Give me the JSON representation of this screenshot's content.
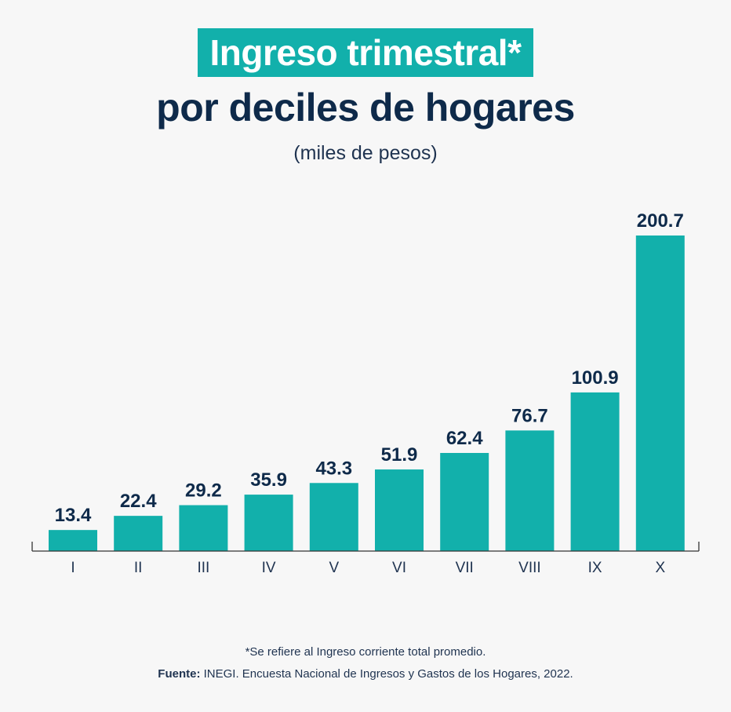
{
  "header": {
    "title": "Ingreso trimestral*",
    "subtitle": "por deciles de hogares",
    "units": "(miles de pesos)"
  },
  "colors": {
    "bar": "#12b0ab",
    "text": "#0e2a4a",
    "axis": "#333333"
  },
  "chart_data": {
    "type": "bar",
    "title": "Ingreso trimestral* por deciles de hogares",
    "ylabel": "(miles de pesos)",
    "categories": [
      "I",
      "II",
      "III",
      "IV",
      "V",
      "VI",
      "VII",
      "VIII",
      "IX",
      "X"
    ],
    "values": [
      13.4,
      22.4,
      29.2,
      35.9,
      43.3,
      51.9,
      62.4,
      76.7,
      100.9,
      200.7
    ],
    "value_labels": [
      "13.4",
      "22.4",
      "29.2",
      "35.9",
      "43.3",
      "51.9",
      "62.4",
      "76.7",
      "100.9",
      "200.7"
    ],
    "ylim": [
      0,
      200.7
    ],
    "grid": false,
    "legend": "none"
  },
  "footer": {
    "note": "*Se refiere al Ingreso corriente total promedio.",
    "source_label": "Fuente:",
    "source_text": " INEGI. Encuesta Nacional de Ingresos y Gastos de los Hogares, 2022."
  }
}
